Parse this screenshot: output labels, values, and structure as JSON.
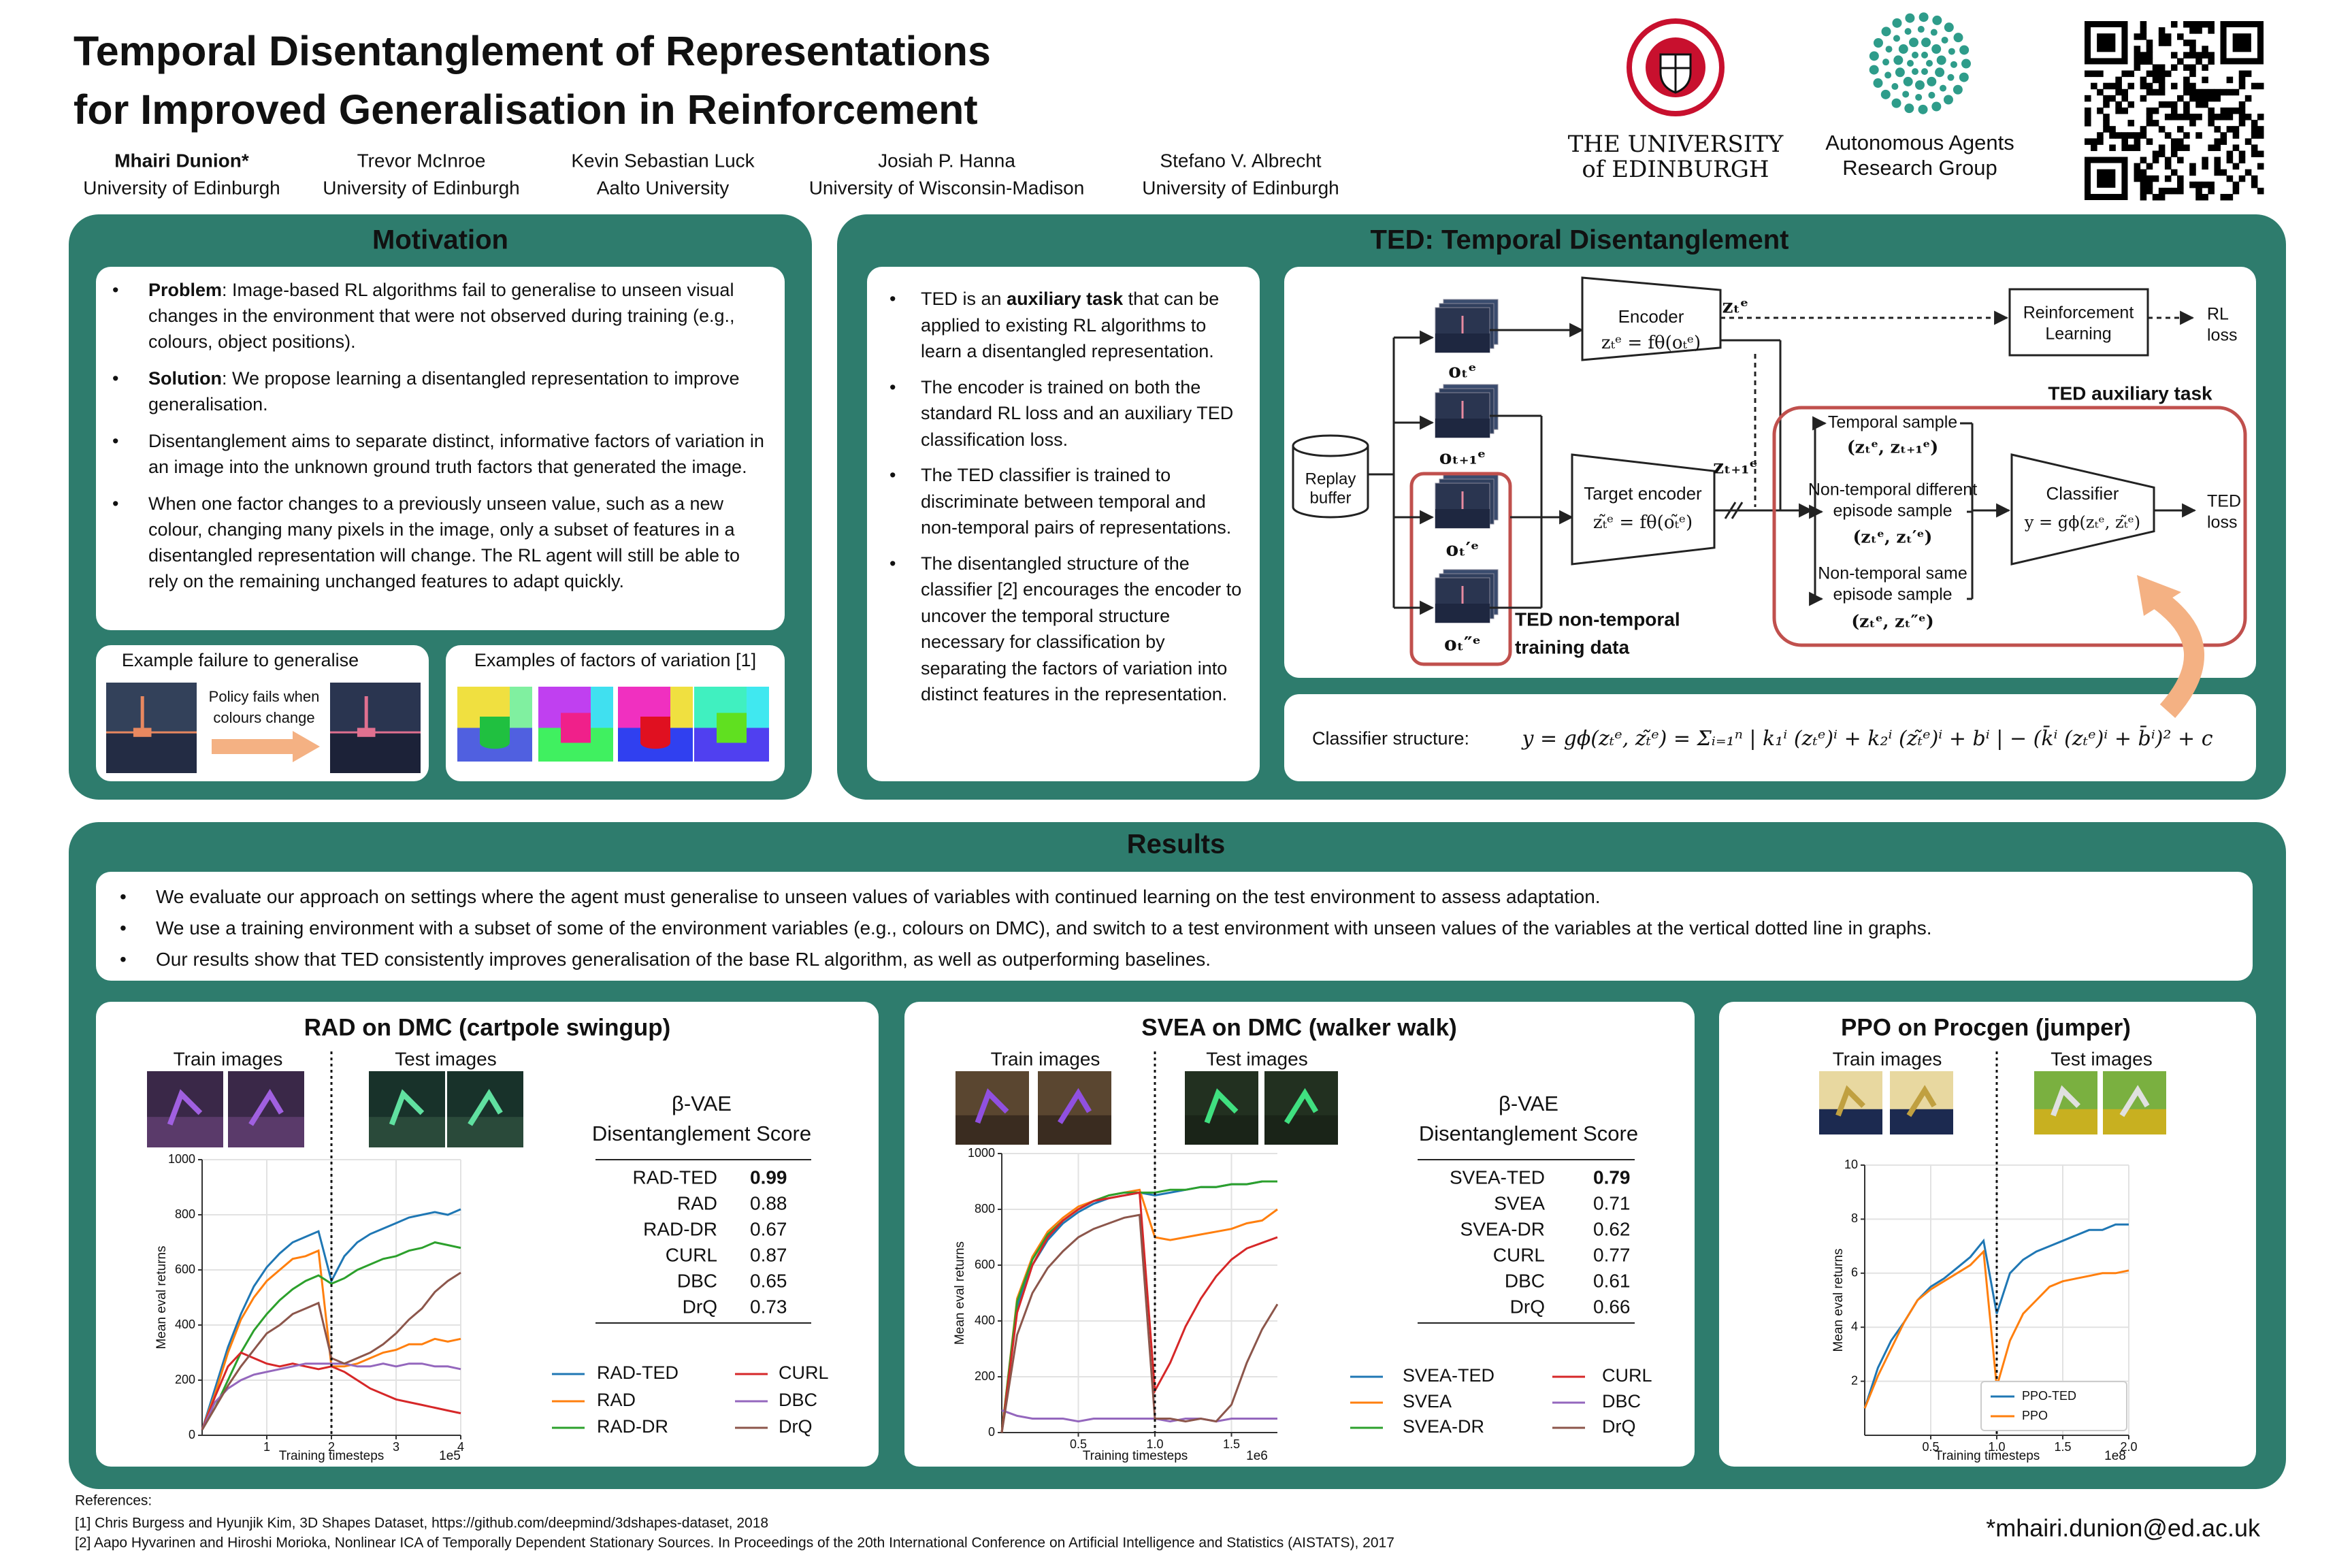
{
  "header": {
    "title": [
      "Temporal Disentanglement of Representations",
      "for Improved Generalisation in Reinforcement"
    ],
    "authors": [
      {
        "name": "Mhairi Dunion*",
        "affiliation": "University of Edinburgh"
      },
      {
        "name": "Trevor McInroe",
        "affiliation": "University of Edinburgh"
      },
      {
        "name": "Kevin Sebastian Luck",
        "affiliation": "Aalto University"
      },
      {
        "name": "Josiah P. Hanna",
        "affiliation": "University of Wisconsin-Madison"
      },
      {
        "name": "Stefano V. Albrecht",
        "affiliation": "University of Edinburgh"
      }
    ],
    "university": [
      "THE UNIVERSITY",
      "of EDINBURGH"
    ],
    "group": [
      "Autonomous Agents",
      "Research Group"
    ]
  },
  "motivation": {
    "title": "Motivation",
    "bullets": [
      [
        {
          "text": "Problem",
          "bold": true
        },
        {
          "text": ": Image-based RL algorithms fail to generalise to unseen visual changes in the environment that were not observed during training (e.g., colours, object positions)."
        }
      ],
      [
        {
          "text": "Solution",
          "bold": true
        },
        {
          "text": ": We propose learning a disentangled representation to improve generalisation."
        }
      ],
      [
        {
          "text": "Disentanglement aims to separate distinct, informative factors of variation in an image into the unknown ground truth factors that generated the image."
        }
      ],
      [
        {
          "text": "When one factor changes to a previously unseen value, such as a new colour, changing many pixels in the image, only a subset of features in a disentangled representation will change. The RL agent will still be able to rely on the remaining unchanged features to adapt quickly."
        }
      ]
    ],
    "failure_title": "Example failure to generalise",
    "failure_caption": [
      "Policy fails when",
      "colours change"
    ],
    "factors_title": "Examples of factors of variation [1]"
  },
  "ted": {
    "title": "TED: Temporal Disentanglement",
    "bullets": [
      [
        {
          "text": "TED is an "
        },
        {
          "text": "auxiliary task",
          "bold": true
        },
        {
          "text": " that can be applied to existing RL algorithms to learn a disentangled representation."
        }
      ],
      [
        {
          "text": "The encoder is trained on both the standard RL loss and an auxiliary TED classification loss."
        }
      ],
      [
        {
          "text": "The TED classifier is trained to discriminate between temporal and non-temporal pairs of representations."
        }
      ],
      [
        {
          "text": "The disentangled structure of the classifier [2] encourages the encoder to uncover the temporal structure necessary for classification by separating the factors of variation into distinct features in the representation."
        }
      ]
    ],
    "diagram": {
      "replay": [
        "Replay",
        "buffer"
      ],
      "observations": [
        "oₜᵉ",
        "oₜ₊₁ᵉ",
        "oₜ′ᵉ",
        "oₜ″ᵉ"
      ],
      "encoder": {
        "label": "Encoder",
        "formula": "zₜᵉ = fθ(oₜᵉ)",
        "output": "zₜᵉ"
      },
      "target_encoder": {
        "label": "Target encoder",
        "formula": "zₜ̃ᵉ = fθ(oₜ̃ᵉ)",
        "output": "zₜ₊₁ᵉ"
      },
      "rl": [
        "Reinforcement",
        "Learning"
      ],
      "rl_loss": [
        "RL",
        "loss"
      ],
      "aux_title": "TED auxiliary task",
      "samples": [
        {
          "label": [
            "Temporal sample"
          ],
          "pair": "(zₜᵉ, zₜ₊₁ᵉ)"
        },
        {
          "label": [
            "Non-temporal different",
            "episode sample"
          ],
          "pair": "(zₜᵉ, zₜ′ᵉ)"
        },
        {
          "label": [
            "Non-temporal same",
            "episode sample"
          ],
          "pair": "(zₜᵉ, zₜ″ᵉ)"
        }
      ],
      "classifier": {
        "label": "Classifier",
        "formula": "y = gϕ(zₜᵉ, zₜ̃ᵉ)"
      },
      "ted_loss": [
        "TED",
        "loss"
      ],
      "non_temporal": [
        "TED non-temporal",
        "training data"
      ]
    },
    "structure_label": "Classifier structure:",
    "structure_formula": "y = gϕ(zₜᵉ, zₜ̃ᵉ) = Σᵢ₌₁ⁿ | k₁ⁱ (zₜᵉ)ⁱ + k₂ⁱ (zₜ̃ᵉ)ⁱ + bⁱ | − (k̄ⁱ (zₜᵉ)ⁱ + b̄ⁱ)² + c"
  },
  "results": {
    "title": "Results",
    "bullets": [
      "We evaluate our approach on settings where the agent must generalise to unseen values of variables with continued learning on the test environment to assess adaptation.",
      "We use a training environment with a subset of some of the environment variables (e.g., colours on DMC), and switch to a test environment with unseen values of the variables at the vertical dotted line in graphs.",
      "Our results show that TED consistently improves generalisation of the base RL algorithm, as well as outperforming baselines."
    ]
  },
  "chart_data": [
    {
      "type": "line",
      "title": "RAD on DMC (cartpole swingup)",
      "x_label": "Training timesteps",
      "x_offset": "1e5",
      "y_label": "Mean eval returns",
      "train_label": "Train images",
      "test_label": "Test images",
      "grid": true,
      "legend": "below",
      "switch_x": 2,
      "xlim": [
        0,
        4
      ],
      "xticks": [
        1,
        2,
        3,
        4
      ],
      "ylim": [
        0,
        1000
      ],
      "yticks": [
        0,
        200,
        400,
        600,
        800,
        1000
      ],
      "x": [
        0,
        0.2,
        0.4,
        0.6,
        0.8,
        1,
        1.2,
        1.4,
        1.6,
        1.8,
        2,
        2.2,
        2.4,
        2.6,
        2.8,
        3,
        3.2,
        3.4,
        3.6,
        3.8,
        4
      ],
      "series": [
        {
          "name": "RAD-TED",
          "color": "#1f77b4",
          "values": [
            20,
            170,
            320,
            440,
            540,
            610,
            660,
            700,
            720,
            740,
            560,
            650,
            700,
            730,
            750,
            770,
            790,
            800,
            810,
            800,
            820
          ]
        },
        {
          "name": "RAD",
          "color": "#ff7f0e",
          "values": [
            20,
            150,
            300,
            420,
            500,
            560,
            600,
            640,
            650,
            670,
            250,
            250,
            260,
            280,
            300,
            310,
            330,
            330,
            350,
            340,
            350
          ]
        },
        {
          "name": "RAD-DR",
          "color": "#2ca02c",
          "values": [
            20,
            100,
            200,
            300,
            380,
            440,
            490,
            530,
            560,
            580,
            550,
            570,
            600,
            620,
            640,
            650,
            670,
            680,
            700,
            690,
            680
          ]
        },
        {
          "name": "CURL",
          "color": "#d62728",
          "values": [
            20,
            140,
            250,
            300,
            280,
            260,
            250,
            260,
            250,
            240,
            250,
            230,
            200,
            170,
            150,
            130,
            120,
            110,
            100,
            90,
            80
          ]
        },
        {
          "name": "DBC",
          "color": "#9467bd",
          "values": [
            20,
            120,
            170,
            200,
            220,
            230,
            240,
            250,
            260,
            260,
            260,
            260,
            250,
            250,
            260,
            250,
            260,
            260,
            250,
            250,
            240
          ]
        },
        {
          "name": "DrQ",
          "color": "#8c564b",
          "values": [
            20,
            100,
            180,
            250,
            310,
            370,
            400,
            440,
            460,
            480,
            280,
            260,
            280,
            300,
            330,
            370,
            420,
            460,
            520,
            560,
            590
          ]
        }
      ],
      "table": {
        "header": [
          "β-VAE",
          "Disentanglement Score"
        ],
        "rows": [
          [
            "RAD-TED",
            0.99
          ],
          [
            "RAD",
            0.88
          ],
          [
            "RAD-DR",
            0.67
          ],
          [
            "CURL",
            0.87
          ],
          [
            "DBC",
            0.65
          ],
          [
            "DrQ",
            0.73
          ]
        ]
      }
    },
    {
      "type": "line",
      "title": "SVEA on DMC (walker walk)",
      "x_label": "Training timesteps",
      "x_offset": "1e6",
      "y_label": "Mean eval returns",
      "train_label": "Train images",
      "test_label": "Test images",
      "grid": true,
      "legend": "below",
      "switch_x": 1,
      "xlim": [
        0,
        1.8
      ],
      "xticks": [
        0.5,
        {
          "value": 1,
          "label": "1.0"
        },
        1.5
      ],
      "ylim": [
        0,
        1000
      ],
      "yticks": [
        0,
        200,
        400,
        600,
        800,
        1000
      ],
      "x": [
        0,
        0.1,
        0.2,
        0.3,
        0.4,
        0.5,
        0.6,
        0.7,
        0.8,
        0.9,
        1,
        1.1,
        1.2,
        1.3,
        1.4,
        1.5,
        1.6,
        1.7,
        1.8
      ],
      "series": [
        {
          "name": "SVEA-TED",
          "color": "#1f77b4",
          "values": [
            0,
            450,
            600,
            690,
            750,
            790,
            820,
            840,
            850,
            860,
            850,
            860,
            870,
            880,
            880,
            890,
            890,
            900,
            900
          ]
        },
        {
          "name": "SVEA",
          "color": "#ff7f0e",
          "values": [
            0,
            480,
            630,
            720,
            770,
            810,
            830,
            850,
            860,
            870,
            700,
            690,
            700,
            710,
            720,
            730,
            750,
            760,
            800
          ]
        },
        {
          "name": "SVEA-DR",
          "color": "#2ca02c",
          "values": [
            0,
            470,
            620,
            710,
            760,
            800,
            830,
            850,
            860,
            860,
            860,
            870,
            870,
            880,
            880,
            890,
            890,
            900,
            900
          ]
        },
        {
          "name": "CURL",
          "color": "#d62728",
          "values": [
            0,
            430,
            600,
            700,
            760,
            800,
            830,
            840,
            850,
            860,
            150,
            250,
            380,
            480,
            560,
            620,
            660,
            680,
            700
          ]
        },
        {
          "name": "DBC",
          "color": "#9467bd",
          "values": [
            80,
            60,
            50,
            50,
            50,
            40,
            50,
            50,
            50,
            50,
            50,
            40,
            50,
            50,
            40,
            50,
            50,
            50,
            50
          ]
        },
        {
          "name": "DrQ",
          "color": "#8c564b",
          "values": [
            0,
            350,
            500,
            590,
            650,
            700,
            730,
            750,
            770,
            780,
            50,
            50,
            40,
            50,
            40,
            100,
            250,
            370,
            460
          ]
        }
      ],
      "table": {
        "header": [
          "β-VAE",
          "Disentanglement Score"
        ],
        "rows": [
          [
            "SVEA-TED",
            0.79
          ],
          [
            "SVEA",
            0.71
          ],
          [
            "SVEA-DR",
            0.62
          ],
          [
            "CURL",
            0.77
          ],
          [
            "DBC",
            0.61
          ],
          [
            "DrQ",
            0.66
          ]
        ]
      }
    },
    {
      "type": "line",
      "title": "PPO on Procgen (jumper)",
      "x_label": "Training timesteps",
      "x_offset": "1e8",
      "y_label": "Mean eval returns",
      "train_label": "Train images",
      "test_label": "Test images",
      "grid": true,
      "legend": "lower right",
      "switch_x": 1,
      "xlim": [
        0,
        2
      ],
      "xticks": [
        0.5,
        {
          "value": 1,
          "label": "1.0"
        },
        1.5,
        {
          "value": 2,
          "label": "2.0"
        }
      ],
      "ylim": [
        0,
        10
      ],
      "yticks": [
        2,
        4,
        6,
        8,
        10
      ],
      "x": [
        0,
        0.1,
        0.2,
        0.3,
        0.4,
        0.5,
        0.6,
        0.7,
        0.8,
        0.9,
        1,
        1.1,
        1.2,
        1.3,
        1.4,
        1.5,
        1.6,
        1.7,
        1.8,
        1.9,
        2
      ],
      "series": [
        {
          "name": "PPO-TED",
          "color": "#1f77b4",
          "values": [
            1,
            2.5,
            3.5,
            4.2,
            5,
            5.5,
            5.8,
            6.2,
            6.6,
            7.2,
            4.5,
            6,
            6.5,
            6.8,
            7,
            7.2,
            7.4,
            7.6,
            7.6,
            7.8,
            7.8
          ]
        },
        {
          "name": "PPO",
          "color": "#ff7f0e",
          "values": [
            1,
            2.2,
            3.2,
            4.2,
            5,
            5.4,
            5.7,
            6,
            6.3,
            6.8,
            1.8,
            3.5,
            4.5,
            5,
            5.5,
            5.7,
            5.8,
            5.9,
            6,
            6,
            6.1
          ]
        }
      ]
    }
  ],
  "footer": {
    "references_title": "References:",
    "references": [
      "[1] Chris Burgess and Hyunjik Kim, 3D Shapes Dataset, https://github.com/deepmind/3dshapes-dataset, 2018",
      "[2] Aapo Hyvarinen and Hiroshi Morioka, Nonlinear ICA of Temporally Dependent Stationary Sources. In Proceedings of the 20th International Conference on Artificial Intelligence and Statistics (AISTATS), 2017"
    ],
    "email": "*mhairi.dunion@ed.ac.uk"
  }
}
